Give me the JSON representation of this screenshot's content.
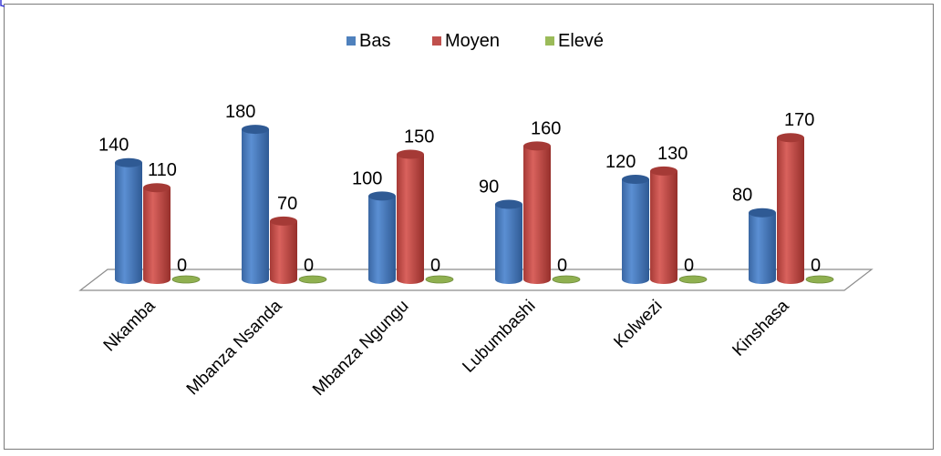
{
  "chart_data": {
    "type": "bar",
    "style": "3d-cylinder",
    "categories": [
      "Nkamba",
      "Mbanza Nsanda",
      "Mbanza Ngungu",
      "Lubumbashi",
      "Kolwezi",
      "Kinshasa"
    ],
    "series": [
      {
        "name": "Bas",
        "color": "#4F81BD",
        "values": [
          140,
          180,
          100,
          90,
          120,
          80
        ]
      },
      {
        "name": "Moyen",
        "color": "#C0504D",
        "values": [
          110,
          70,
          150,
          160,
          130,
          170
        ]
      },
      {
        "name": "Elevé",
        "color": "#9BBB59",
        "values": [
          0,
          0,
          0,
          0,
          0,
          0
        ]
      }
    ],
    "title": "",
    "xlabel": "",
    "ylabel": "",
    "ylim": [
      0,
      200
    ],
    "grid": false,
    "legend_position": "top",
    "data_labels": true
  }
}
